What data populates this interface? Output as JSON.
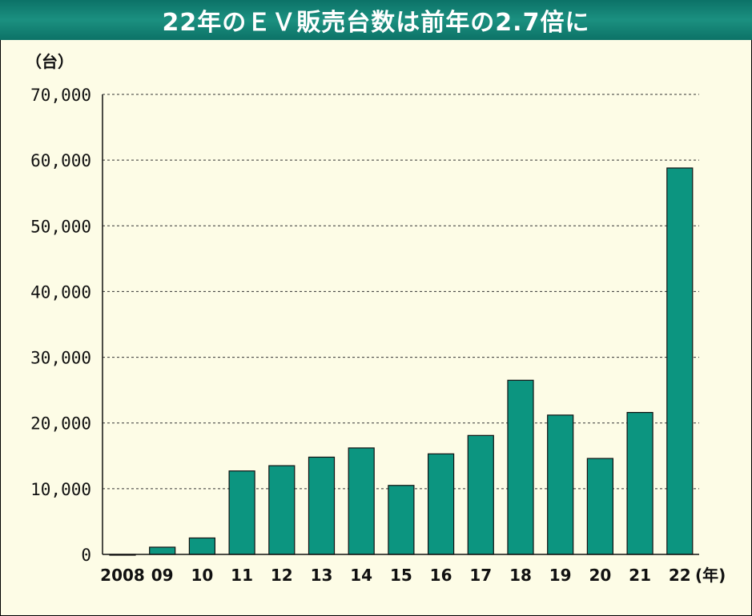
{
  "chart_data": {
    "type": "bar",
    "title": "22年のＥＶ販売台数は前年の2.7倍に",
    "ylabel": "（台）",
    "xlabel": "(年)",
    "categories": [
      "2008",
      "09",
      "10",
      "11",
      "12",
      "13",
      "14",
      "15",
      "16",
      "17",
      "18",
      "19",
      "20",
      "21",
      "22"
    ],
    "values": [
      0,
      1100,
      2500,
      12700,
      13500,
      14800,
      16200,
      10500,
      15300,
      18100,
      26500,
      21200,
      14600,
      21600,
      58800
    ],
    "ylim": [
      0,
      70000
    ],
    "yticks": [
      "0",
      "10,000",
      "20,000",
      "30,000",
      "40,000",
      "50,000",
      "60,000",
      "70,000"
    ],
    "grid": true,
    "bar_color": "#0c9580"
  }
}
